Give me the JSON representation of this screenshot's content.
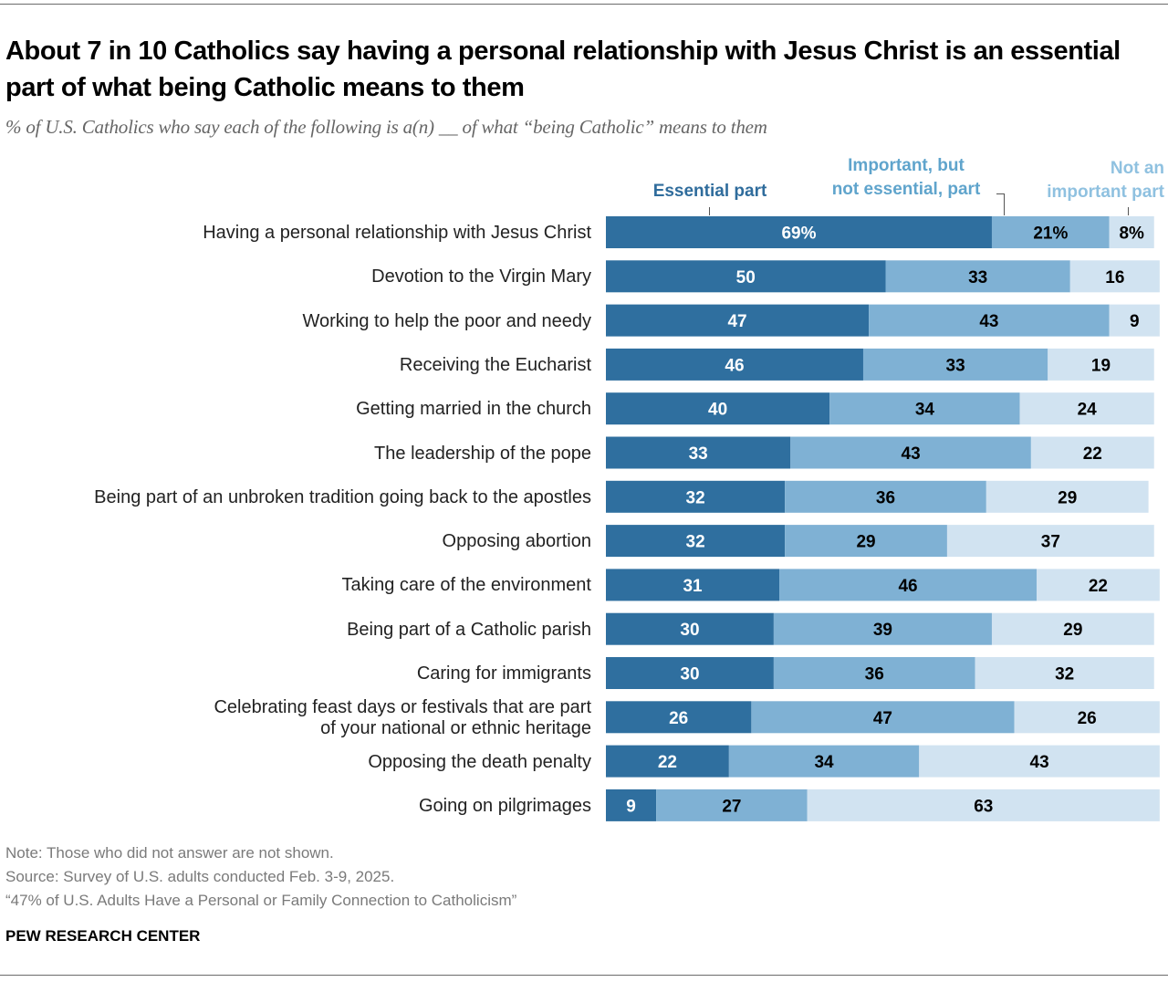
{
  "header": {
    "title": "About 7 in 10 Catholics say having a personal relationship with Jesus Christ is an essential part of what being Catholic means to them",
    "subtitle": "% of U.S. Catholics who say each of the following is a(n) __ of what “being Catholic” means to them"
  },
  "legend": {
    "essential": "Essential part",
    "important": "Important, but\nnot essential, part",
    "not_important": "Not an\nimportant part"
  },
  "colors": {
    "essential": "#2f6f9f",
    "important": "#7fb1d4",
    "not_important": "#d1e3f1",
    "essential_text": "#ffffff",
    "other_text": "#000000"
  },
  "chart_data": {
    "type": "bar",
    "stacked": true,
    "orientation": "horizontal",
    "title": "About 7 in 10 Catholics say having a personal relationship with Jesus Christ is an essential part of what being Catholic means to them",
    "subtitle": "% of U.S. Catholics who say each of the following is a(n) __ of what “being Catholic” means to them",
    "xlabel": "",
    "ylabel": "",
    "xlim": [
      0,
      100
    ],
    "grid": false,
    "legend_position": "top",
    "categories": [
      "Having a personal relationship with Jesus Christ",
      "Devotion to the Virgin Mary",
      "Working to help the poor and needy",
      "Receiving the Eucharist",
      "Getting married in the church",
      "The leadership of the pope",
      "Being part of an unbroken tradition going back to the apostles",
      "Opposing abortion",
      "Taking care of the environment",
      "Being part of a Catholic parish",
      "Caring for immigrants",
      "Celebrating feast days or festivals that are part\nof your national or ethnic heritage",
      "Opposing the death penalty",
      "Going on pilgrimages"
    ],
    "series": [
      {
        "name": "Essential part",
        "values": [
          69,
          50,
          47,
          46,
          40,
          33,
          32,
          32,
          31,
          30,
          30,
          26,
          22,
          9
        ]
      },
      {
        "name": "Important, but not essential, part",
        "values": [
          21,
          33,
          43,
          33,
          34,
          43,
          36,
          29,
          46,
          39,
          36,
          47,
          34,
          27
        ]
      },
      {
        "name": "Not an important part",
        "values": [
          8,
          16,
          9,
          19,
          24,
          22,
          29,
          37,
          22,
          29,
          32,
          26,
          43,
          63
        ]
      }
    ],
    "first_row_percent_sign": true
  },
  "footer": {
    "note": "Note: Those who did not answer are not shown.",
    "source": "Source: Survey of U.S. adults conducted Feb. 3-9, 2025.",
    "report": "“47% of U.S. Adults Have a Personal or Family Connection to Catholicism”",
    "brand": "PEW RESEARCH CENTER"
  }
}
